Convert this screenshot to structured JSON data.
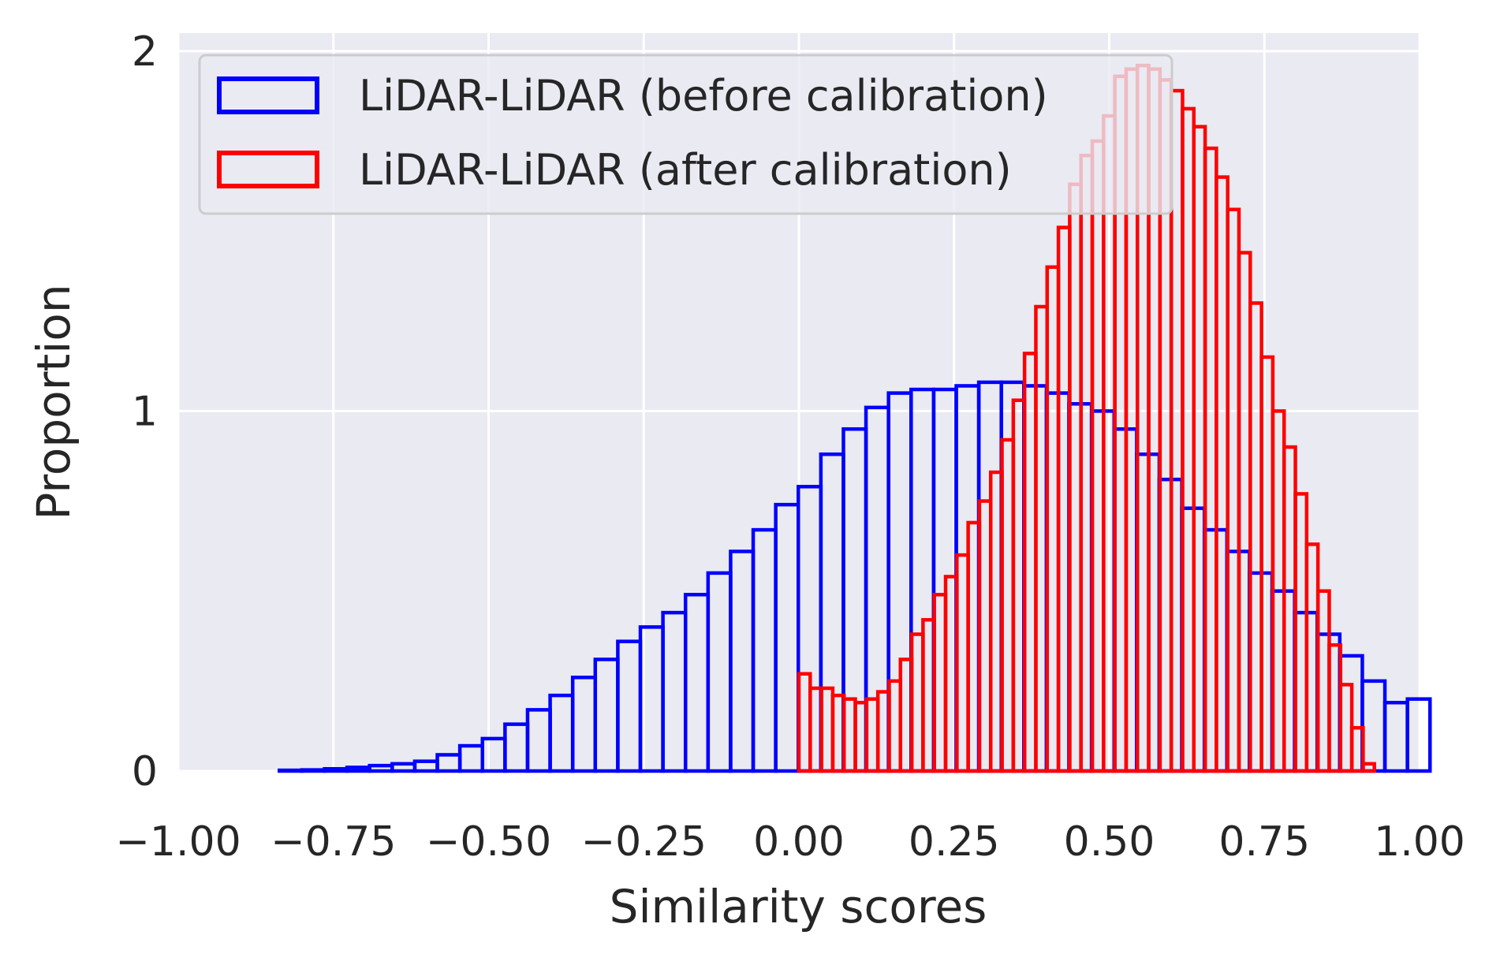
{
  "chart_data": {
    "type": "histogram",
    "xlabel": "Similarity scores",
    "ylabel": "Proportion",
    "xlim": [
      -1.0,
      1.0
    ],
    "ylim": [
      0,
      2.05
    ],
    "xticks": [
      -1.0,
      -0.75,
      -0.5,
      -0.25,
      0.0,
      0.25,
      0.5,
      0.75,
      1.0
    ],
    "xtick_labels": [
      "−1.00",
      "−0.75",
      "−0.50",
      "−0.25",
      "0.00",
      "0.25",
      "0.50",
      "0.75",
      "1.00"
    ],
    "yticks": [
      0,
      1,
      2
    ],
    "ytick_labels": [
      "0",
      "1",
      "2"
    ],
    "grid": true,
    "legend_position": "top-left",
    "series": [
      {
        "name": "LiDAR-LiDAR (before calibration)",
        "color": "#0000ff",
        "bin_start": -0.837,
        "bin_width": 0.03635,
        "values": [
          0.002,
          0.003,
          0.006,
          0.01,
          0.015,
          0.02,
          0.027,
          0.045,
          0.07,
          0.09,
          0.13,
          0.17,
          0.21,
          0.26,
          0.31,
          0.36,
          0.4,
          0.44,
          0.49,
          0.55,
          0.61,
          0.67,
          0.74,
          0.79,
          0.88,
          0.95,
          1.01,
          1.05,
          1.06,
          1.06,
          1.07,
          1.08,
          1.08,
          1.07,
          1.05,
          1.02,
          1.0,
          0.95,
          0.88,
          0.81,
          0.73,
          0.67,
          0.61,
          0.55,
          0.5,
          0.44,
          0.38,
          0.32,
          0.25,
          0.19,
          0.2
        ]
      },
      {
        "name": "LiDAR-LiDAR (after calibration)",
        "color": "#ff0000",
        "bin_start": 0.0,
        "bin_width": 0.01818,
        "values": [
          0.27,
          0.23,
          0.23,
          0.21,
          0.2,
          0.19,
          0.2,
          0.22,
          0.25,
          0.31,
          0.38,
          0.42,
          0.49,
          0.54,
          0.6,
          0.69,
          0.75,
          0.83,
          0.92,
          1.03,
          1.16,
          1.29,
          1.4,
          1.51,
          1.63,
          1.71,
          1.75,
          1.82,
          1.93,
          1.95,
          1.96,
          1.95,
          1.92,
          1.89,
          1.84,
          1.79,
          1.73,
          1.65,
          1.56,
          1.44,
          1.3,
          1.15,
          1.0,
          0.9,
          0.77,
          0.63,
          0.5,
          0.35,
          0.24,
          0.12,
          0.02
        ]
      }
    ]
  }
}
